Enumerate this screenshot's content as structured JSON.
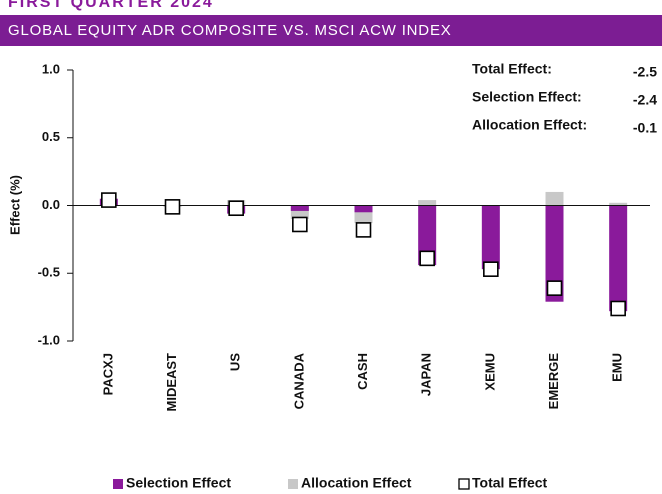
{
  "chart_data": {
    "type": "bar",
    "heading": "FIRST QUARTER 2024",
    "title": "GLOBAL EQUITY ADR COMPOSITE VS. MSCI ACW INDEX",
    "y_label": "Effect (%)",
    "categories": [
      "PACXJ",
      "MIDEAST",
      "US",
      "CANADA",
      "CASH",
      "JAPAN",
      "XEMU",
      "EMERGE",
      "EMU"
    ],
    "series": [
      {
        "name": "Selection Effect",
        "color": "#8a1a9b",
        "style": "bar",
        "values": [
          0.05,
          0.0,
          -0.06,
          -0.04,
          -0.05,
          -0.44,
          -0.47,
          -0.71,
          -0.78
        ]
      },
      {
        "name": "Allocation Effect",
        "color": "#c8c8c8",
        "style": "bar",
        "values": [
          0.0,
          -0.01,
          0.04,
          -0.1,
          -0.13,
          0.04,
          0.0,
          0.1,
          0.02
        ]
      },
      {
        "name": "Total Effect",
        "color": "#000000",
        "style": "marker",
        "values": [
          0.04,
          -0.01,
          -0.02,
          -0.14,
          -0.18,
          -0.39,
          -0.47,
          -0.61,
          -0.76
        ]
      }
    ],
    "summary": [
      {
        "label": "Total Effect:",
        "value": -2.5
      },
      {
        "label": "Selection Effect:",
        "value": -2.4
      },
      {
        "label": "Allocation Effect:",
        "value": -0.1
      }
    ],
    "ylim": [
      -1.0,
      1.0
    ],
    "yticks": [
      {
        "value": 1.0,
        "label": "1.0"
      },
      {
        "value": 0.5,
        "label": "0.5"
      },
      {
        "value": 0,
        "label": "0.0"
      },
      {
        "value": -0.5,
        "label": "-0.5"
      },
      {
        "value": -1.0,
        "label": "-1.0"
      }
    ],
    "grid": false
  }
}
